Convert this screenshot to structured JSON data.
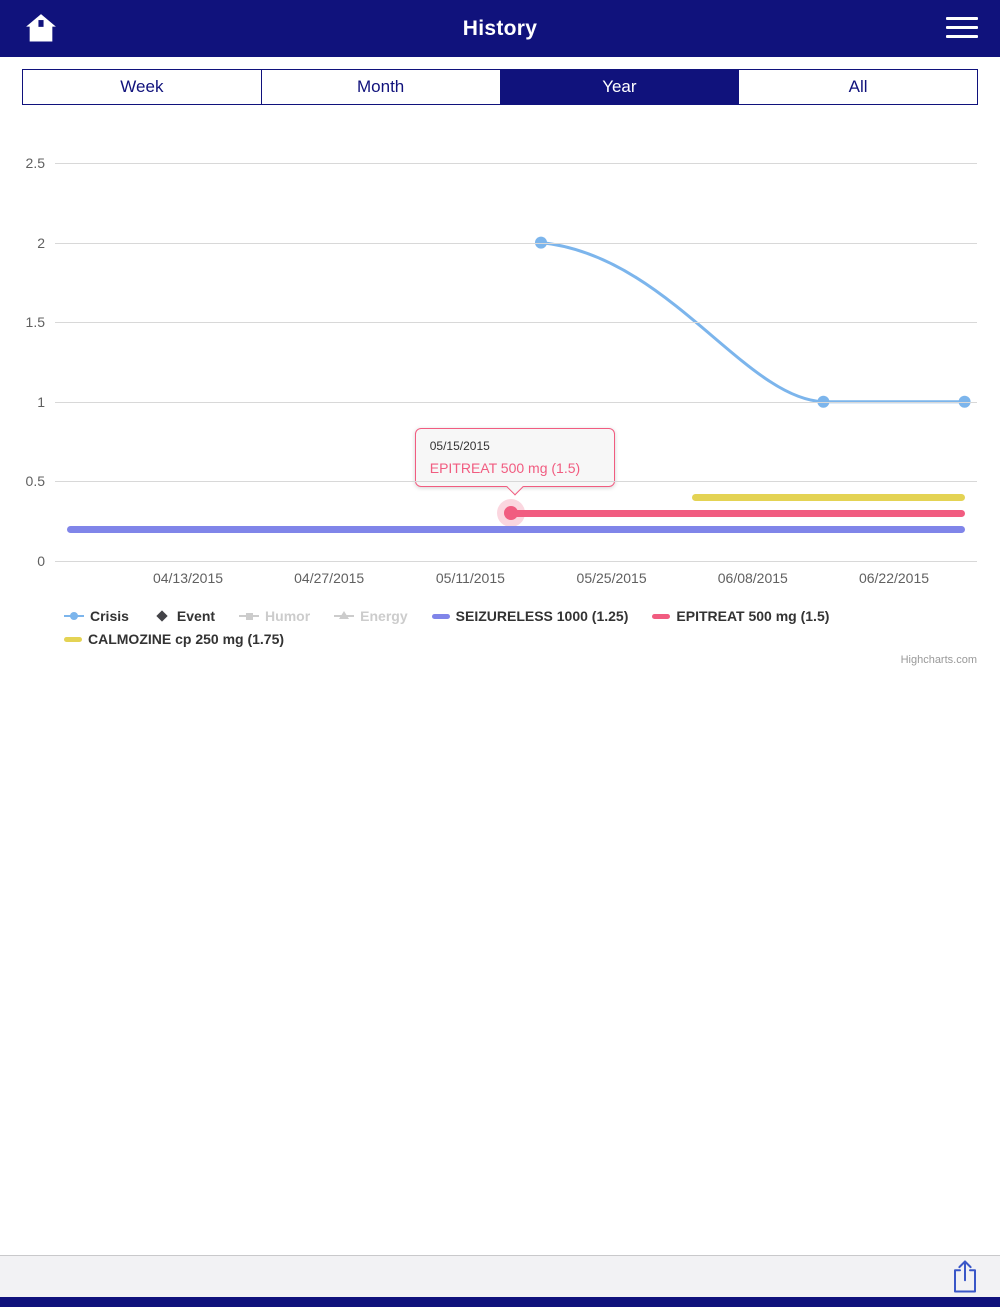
{
  "header": {
    "title": "History"
  },
  "tabs": [
    {
      "label": "Week",
      "active": false
    },
    {
      "label": "Month",
      "active": false
    },
    {
      "label": "Year",
      "active": true
    },
    {
      "label": "All",
      "active": false
    }
  ],
  "colors": {
    "navy": "#10127c",
    "crisis": "#7cb5ec",
    "event": "#434348",
    "disabled": "#cccccc",
    "seizureless": "#8085e9",
    "epitreat": "#f15c80",
    "calmozine": "#e4d354",
    "grid": "#d8d8d8",
    "axis_label": "#606060",
    "legend_text": "#333333",
    "share_icon": "#3a57c8"
  },
  "chart_data": {
    "type": "line",
    "title": "",
    "xlabel": "",
    "ylabel": "",
    "ylim": [
      0,
      2.6
    ],
    "grid": true,
    "legend_position": "bottom",
    "y_ticks": [
      0,
      0.5,
      1,
      1.5,
      2,
      2.5
    ],
    "x_ticks": [
      "04/13/2015",
      "04/27/2015",
      "05/11/2015",
      "05/25/2015",
      "06/08/2015",
      "06/22/2015"
    ],
    "series": [
      {
        "name": "Crisis",
        "type": "spline",
        "color": "#7cb5ec",
        "points": [
          {
            "date": "05/18/2015",
            "y": 2
          },
          {
            "date": "06/15/2015",
            "y": 1
          },
          {
            "date": "06/29/2015",
            "y": 1
          }
        ]
      },
      {
        "name": "SEIZURELESS 1000 (1.25)",
        "type": "bar",
        "color": "#8085e9",
        "y": 0.2,
        "start": "04/01/2015",
        "end": "06/29/2015"
      },
      {
        "name": "EPITREAT 500 mg (1.5)",
        "type": "bar",
        "color": "#f15c80",
        "y": 0.3,
        "start": "05/15/2015",
        "end": "06/29/2015"
      },
      {
        "name": "CALMOZINE cp 250 mg (1.75)",
        "type": "bar",
        "color": "#e4d354",
        "y": 0.4,
        "start": "06/02/2015",
        "end": "06/29/2015"
      }
    ],
    "legend": [
      {
        "label": "Crisis",
        "marker": "line-circle",
        "color": "#7cb5ec",
        "enabled": true
      },
      {
        "label": "Event",
        "marker": "diamond",
        "color": "#434348",
        "enabled": true
      },
      {
        "label": "Humor",
        "marker": "line-square",
        "color": "#cccccc",
        "enabled": false
      },
      {
        "label": "Energy",
        "marker": "line-triangle",
        "color": "#cccccc",
        "enabled": false
      },
      {
        "label": "SEIZURELESS 1000 (1.25)",
        "marker": "thick-line",
        "color": "#8085e9",
        "enabled": true
      },
      {
        "label": "EPITREAT 500 mg (1.5)",
        "marker": "thick-line",
        "color": "#f15c80",
        "enabled": true
      },
      {
        "label": "CALMOZINE cp 250 mg (1.75)",
        "marker": "thick-line",
        "color": "#e4d354",
        "enabled": true
      }
    ],
    "tooltip": {
      "date": "05/15/2015",
      "label": "EPITREAT 500 mg (1.5)",
      "color": "#f15c80",
      "anchor_date": "05/15/2015",
      "anchor_y": 0.3
    },
    "credit": "Highcharts.com"
  }
}
